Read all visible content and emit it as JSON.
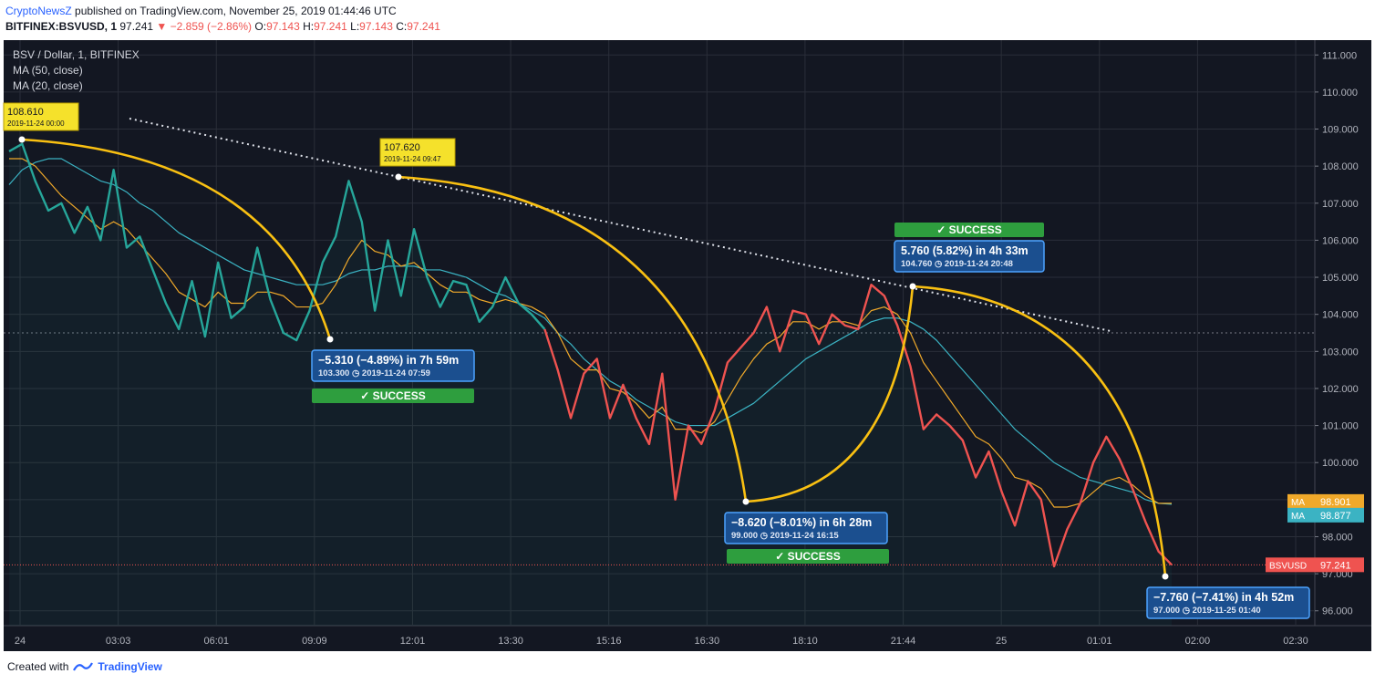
{
  "header": {
    "brand": "CryptoNewsZ",
    "published": "published on TradingView.com, November 25, 2019 01:44:46 UTC",
    "symbol": "BITFINEX:BSVUSD, 1",
    "last": "97.241",
    "change": "−2.859 (−2.86%)",
    "open_label": "O:",
    "open": "97.143",
    "high_label": "H:",
    "high": "97.241",
    "low_label": "L:",
    "low": "97.143",
    "close_label": "C:",
    "close": "97.241"
  },
  "legend": {
    "pair": "BSV / Dollar, 1, BITFINEX",
    "ma50": "MA (50, close)",
    "ma20": "MA (20, close)"
  },
  "footer": {
    "created": "Created with",
    "tv": "TradingView"
  },
  "colors": {
    "background": "#131722",
    "up": "#26a69a",
    "down": "#ef5350",
    "ma20": "#f0a92a",
    "ma50": "#3bb3c3",
    "arc": "#f9c012",
    "callout": "#1e6fd1",
    "success": "#2e9e3e",
    "flag": "#f5e12b"
  },
  "chart_data": {
    "type": "line",
    "title": "BSV / Dollar, 1, BITFINEX",
    "ylim": [
      95.6,
      111.4
    ],
    "y_ticks": [
      "111.000",
      "110.000",
      "109.000",
      "108.000",
      "107.000",
      "106.000",
      "105.000",
      "104.000",
      "103.000",
      "102.000",
      "101.000",
      "100.000",
      "99.000",
      "98.000",
      "97.000",
      "96.000"
    ],
    "x_ticks": [
      "24",
      "03:03",
      "06:01",
      "09:09",
      "12:01",
      "13:30",
      "15:16",
      "16:30",
      "18:10",
      "21:44",
      "25",
      "01:01",
      "02:00",
      "02:30"
    ],
    "series": [
      {
        "name": "BSVUSD",
        "last": "97.241",
        "values": [
          108.4,
          108.6,
          107.6,
          106.8,
          107.0,
          106.2,
          106.9,
          106.0,
          107.9,
          105.8,
          106.1,
          105.2,
          104.3,
          103.6,
          104.9,
          103.4,
          105.4,
          103.9,
          104.2,
          105.8,
          104.4,
          103.5,
          103.3,
          104.1,
          105.4,
          106.1,
          107.6,
          106.5,
          104.1,
          106.0,
          104.5,
          106.3,
          105.0,
          104.2,
          104.9,
          104.8,
          103.8,
          104.2,
          105.0,
          104.3,
          104.0,
          103.6,
          102.5,
          101.2,
          102.4,
          102.8,
          101.2,
          102.1,
          101.2,
          100.5,
          102.4,
          99.0,
          101.0,
          100.5,
          101.4,
          102.7,
          103.1,
          103.5,
          104.2,
          103.0,
          104.1,
          104.0,
          103.2,
          104.0,
          103.7,
          103.6,
          104.8,
          104.5,
          103.7,
          102.6,
          100.9,
          101.3,
          101.0,
          100.6,
          99.6,
          100.3,
          99.2,
          98.3,
          99.5,
          99.0,
          97.2,
          98.2,
          98.9,
          100.0,
          100.7,
          100.1,
          99.3,
          98.4,
          97.6,
          97.241
        ]
      },
      {
        "name": "MA (20, close)",
        "label": "MA",
        "last": "98.901",
        "values": [
          108.2,
          108.2,
          108.0,
          107.6,
          107.2,
          106.9,
          106.6,
          106.3,
          106.5,
          106.3,
          105.9,
          105.5,
          105.1,
          104.6,
          104.4,
          104.2,
          104.6,
          104.3,
          104.3,
          104.6,
          104.6,
          104.5,
          104.2,
          104.2,
          104.3,
          104.8,
          105.5,
          106.0,
          105.7,
          105.6,
          105.3,
          105.4,
          105.1,
          104.8,
          104.6,
          104.6,
          104.4,
          104.3,
          104.4,
          104.3,
          104.2,
          104.0,
          103.5,
          102.8,
          102.5,
          102.5,
          102.0,
          101.9,
          101.6,
          101.2,
          101.5,
          100.9,
          100.9,
          100.8,
          101.1,
          101.7,
          102.3,
          102.8,
          103.2,
          103.4,
          103.8,
          103.8,
          103.6,
          103.8,
          103.8,
          103.7,
          104.1,
          104.2,
          104.0,
          103.5,
          102.7,
          102.2,
          101.7,
          101.2,
          100.7,
          100.5,
          100.1,
          99.6,
          99.5,
          99.3,
          98.8,
          98.8,
          98.9,
          99.2,
          99.5,
          99.6,
          99.4,
          99.1,
          98.9,
          98.901
        ]
      },
      {
        "name": "MA (50, close)",
        "label": "MA",
        "last": "98.877",
        "values": [
          107.5,
          107.9,
          108.1,
          108.2,
          108.2,
          108.0,
          107.8,
          107.6,
          107.5,
          107.3,
          107.0,
          106.8,
          106.5,
          106.2,
          106.0,
          105.8,
          105.6,
          105.4,
          105.2,
          105.1,
          105.0,
          104.9,
          104.8,
          104.8,
          104.8,
          104.9,
          105.1,
          105.2,
          105.2,
          105.3,
          105.3,
          105.3,
          105.2,
          105.2,
          105.1,
          105.0,
          104.8,
          104.6,
          104.5,
          104.3,
          104.1,
          103.9,
          103.5,
          103.2,
          102.8,
          102.5,
          102.2,
          102.0,
          101.7,
          101.5,
          101.3,
          101.1,
          101.0,
          101.0,
          101.0,
          101.2,
          101.4,
          101.6,
          101.9,
          102.2,
          102.5,
          102.8,
          103.0,
          103.2,
          103.4,
          103.6,
          103.8,
          103.9,
          103.9,
          103.8,
          103.6,
          103.3,
          102.9,
          102.5,
          102.1,
          101.7,
          101.3,
          100.9,
          100.6,
          100.3,
          100.0,
          99.8,
          99.6,
          99.5,
          99.4,
          99.3,
          99.2,
          99.0,
          98.9,
          98.877
        ]
      }
    ],
    "annotations": [
      {
        "label": "108.610",
        "date": "2019-11-24 00:00"
      },
      {
        "label": "107.620",
        "date": "2019-11-24 09:47"
      },
      {
        "label": "−5.310 (−4.89%) in 7h 59m",
        "price": "103.300",
        "date": "2019-11-24  07:59",
        "status": "SUCCESS"
      },
      {
        "label": "−8.620 (−8.01%) in 6h 28m",
        "price": "99.000",
        "date": "2019-11-24  16:15",
        "status": "SUCCESS"
      },
      {
        "label": "5.760 (5.82%) in 4h 33m",
        "price": "104.760",
        "date": "2019-11-24  20:48",
        "status": "SUCCESS"
      },
      {
        "label": "−7.760 (−7.41%) in 4h 52m",
        "price": "97.000",
        "date": "2019-11-25  01:40",
        "status": ""
      }
    ],
    "grid": true
  }
}
